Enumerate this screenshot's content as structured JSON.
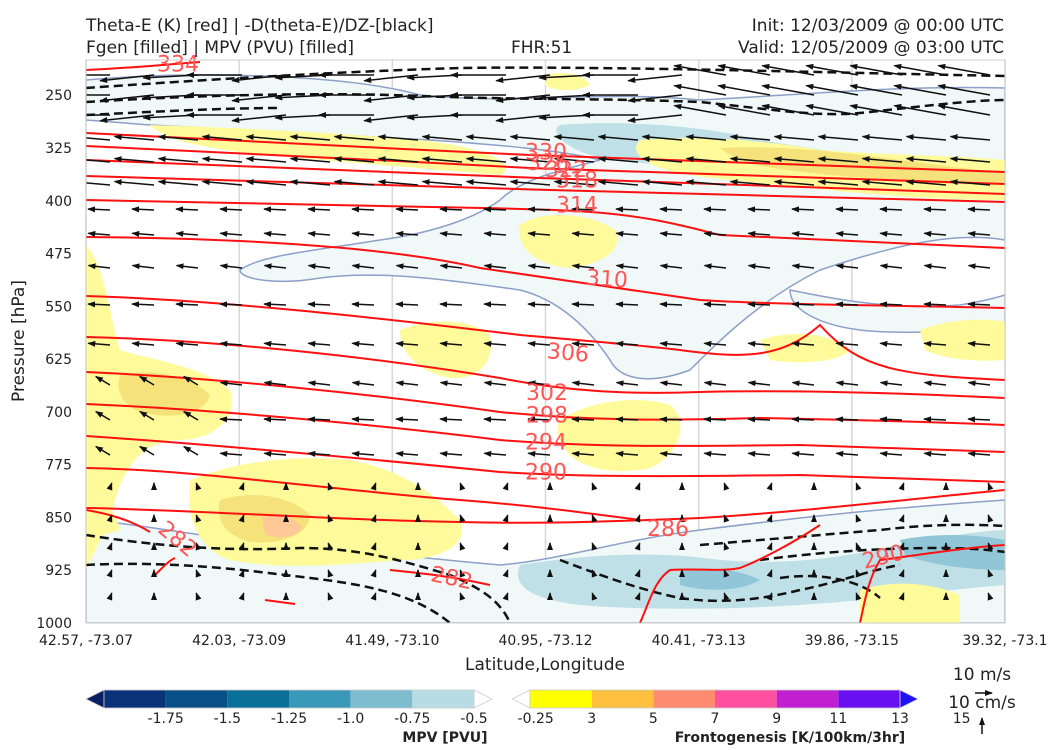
{
  "header": {
    "title_line1": "Theta-E (K) [red] | -D(theta-E)/DZ-[black]",
    "title_line2": "Fgen [filled] | MPV (PVU) [filled]",
    "fhr": "FHR:51",
    "init": "Init: 12/03/2009 @ 00:00 UTC",
    "valid": "Valid: 12/05/2009 @ 03:00 UTC"
  },
  "chart_data": {
    "type": "cross-section",
    "xlabel": "Latitude,Longitude",
    "ylabel": "Pressure [hPa]",
    "x_ticks": [
      "42.57, -73.07",
      "42.03, -73.09",
      "41.49, -73.10",
      "40.95, -73.12",
      "40.41, -73.13",
      "39.86, -73.15",
      "39.32, -73.1"
    ],
    "y_ticks": [
      250,
      325,
      400,
      475,
      550,
      625,
      700,
      775,
      850,
      925,
      1000
    ],
    "ylim": [
      200,
      1000
    ],
    "y_inverted": true,
    "grid": true,
    "theta_e_contours": [
      {
        "label": "334",
        "pressure": 205
      },
      {
        "label": "330",
        "pressure": 330
      },
      {
        "label": "326",
        "pressure": 345
      },
      {
        "label": "322",
        "pressure": 355
      },
      {
        "label": "318",
        "pressure": 370
      },
      {
        "label": "314",
        "pressure": 405
      },
      {
        "label": "310",
        "pressure": 510
      },
      {
        "label": "306",
        "pressure": 615
      },
      {
        "label": "302",
        "pressure": 672
      },
      {
        "label": "298",
        "pressure": 704
      },
      {
        "label": "294",
        "pressure": 742
      },
      {
        "label": "290",
        "pressure": 785
      },
      {
        "label": "286",
        "pressure": 865
      },
      {
        "label": "282",
        "pressure": 935
      },
      {
        "label": "282",
        "pressure": 880
      },
      {
        "label": "290",
        "pressure": 905
      }
    ],
    "colors": {
      "theta_e": "#ff0000",
      "theta_e_label": "#ff5555",
      "stability": "#000000",
      "fgen_3": "#fffb9a",
      "fgen_5": "#f5e27a",
      "mpv_neg_025": "#f0f8f8",
      "mpv_neg_050": "#c0e0e8",
      "mpv_neg_075": "#90c6d8",
      "mpv_contour": "#8ca0c8"
    },
    "mpv_colorbar": {
      "label": "MPV [PVU]",
      "ticks": [
        "-1.75",
        "-1.5",
        "-1.25",
        "-1.0",
        "-0.75",
        "-0.5",
        "-0.25"
      ],
      "colors": [
        "#0a1e64",
        "#0a3278",
        "#0a5088",
        "#0a7098",
        "#3a98b8",
        "#7ebcd0",
        "#b8dce4",
        "#ffffff"
      ]
    },
    "fgen_colorbar": {
      "label": "Frontogenesis [K/100km/3hr]",
      "ticks": [
        "3",
        "5",
        "7",
        "9",
        "11",
        "13",
        "15"
      ],
      "colors": [
        "#ffffff",
        "#ffff00",
        "#ffc040",
        "#ff8c70",
        "#ff50a0",
        "#c020d0",
        "#6a10f0",
        "#2010f8"
      ]
    },
    "wind_key": {
      "u_label": "10 m/s",
      "w_label": "10 cm/s"
    }
  }
}
